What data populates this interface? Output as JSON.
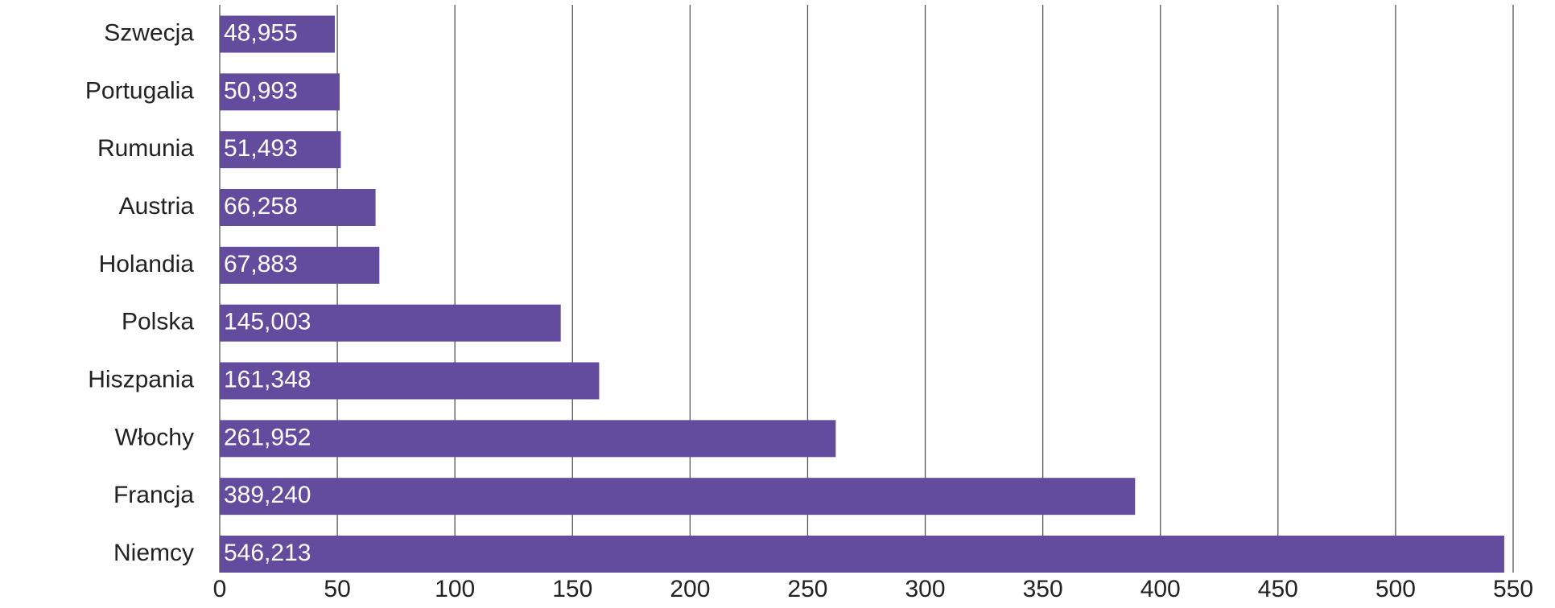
{
  "chart_data": {
    "type": "bar",
    "orientation": "horizontal",
    "categories": [
      "Szwecja",
      "Portugalia",
      "Rumunia",
      "Austria",
      "Holandia",
      "Polska",
      "Hiszpania",
      "Włochy",
      "Francja",
      "Niemcy"
    ],
    "values": [
      48.955,
      50.993,
      51.493,
      66.258,
      67.883,
      145.003,
      161.348,
      261.952,
      389.24,
      546.213
    ],
    "value_labels": [
      "48,955",
      "50,993",
      "51,493",
      "66,258",
      "67,883",
      "145,003",
      "161,348",
      "261,952",
      "389,240",
      "546,213"
    ],
    "color": "#634c9e",
    "xlim": [
      0,
      550
    ],
    "xticks": [
      0,
      50,
      100,
      150,
      200,
      250,
      300,
      350,
      400,
      450,
      500,
      550
    ],
    "grid": true
  }
}
